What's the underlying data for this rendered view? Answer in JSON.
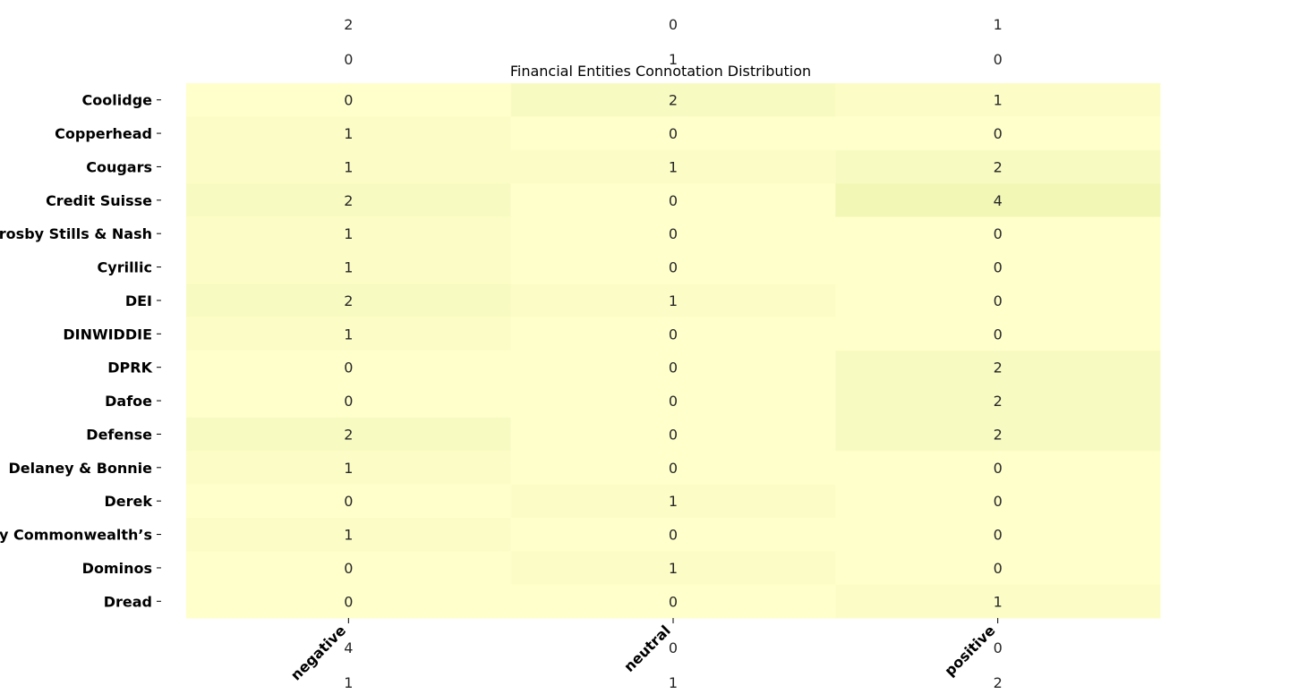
{
  "chart_data": {
    "type": "heatmap",
    "title": "Financial Entities Connotation Distribution",
    "columns": [
      "negative",
      "neutral",
      "positive"
    ],
    "rows": [
      "Coolidge",
      "Copperhead",
      "Cougars",
      "Credit Suisse",
      "Crosby Stills & Nash",
      "Cyrillic",
      "DEI",
      "DINWIDDIE",
      "DPRK",
      "Dafoe",
      "Defense",
      "Delaney & Bonnie",
      "Derek",
      "Dewey Commonwealth’s",
      "Dominos",
      "Dread"
    ],
    "values": [
      [
        0,
        2,
        1
      ],
      [
        1,
        0,
        0
      ],
      [
        1,
        1,
        2
      ],
      [
        2,
        0,
        4
      ],
      [
        1,
        0,
        0
      ],
      [
        1,
        0,
        0
      ],
      [
        2,
        1,
        0
      ],
      [
        1,
        0,
        0
      ],
      [
        0,
        0,
        2
      ],
      [
        0,
        0,
        2
      ],
      [
        2,
        0,
        2
      ],
      [
        1,
        0,
        0
      ],
      [
        0,
        1,
        0
      ],
      [
        1,
        0,
        0
      ],
      [
        0,
        1,
        0
      ],
      [
        0,
        0,
        1
      ]
    ],
    "overflow_rows_above": [
      [
        2,
        0,
        1
      ],
      [
        0,
        1,
        0
      ]
    ],
    "overflow_rows_below": [
      [
        4,
        0,
        0
      ],
      [
        1,
        1,
        2
      ]
    ],
    "color_scale": {
      "min": 0,
      "max": 20,
      "low": "#ffffcc",
      "high": "#bdd75a"
    }
  }
}
